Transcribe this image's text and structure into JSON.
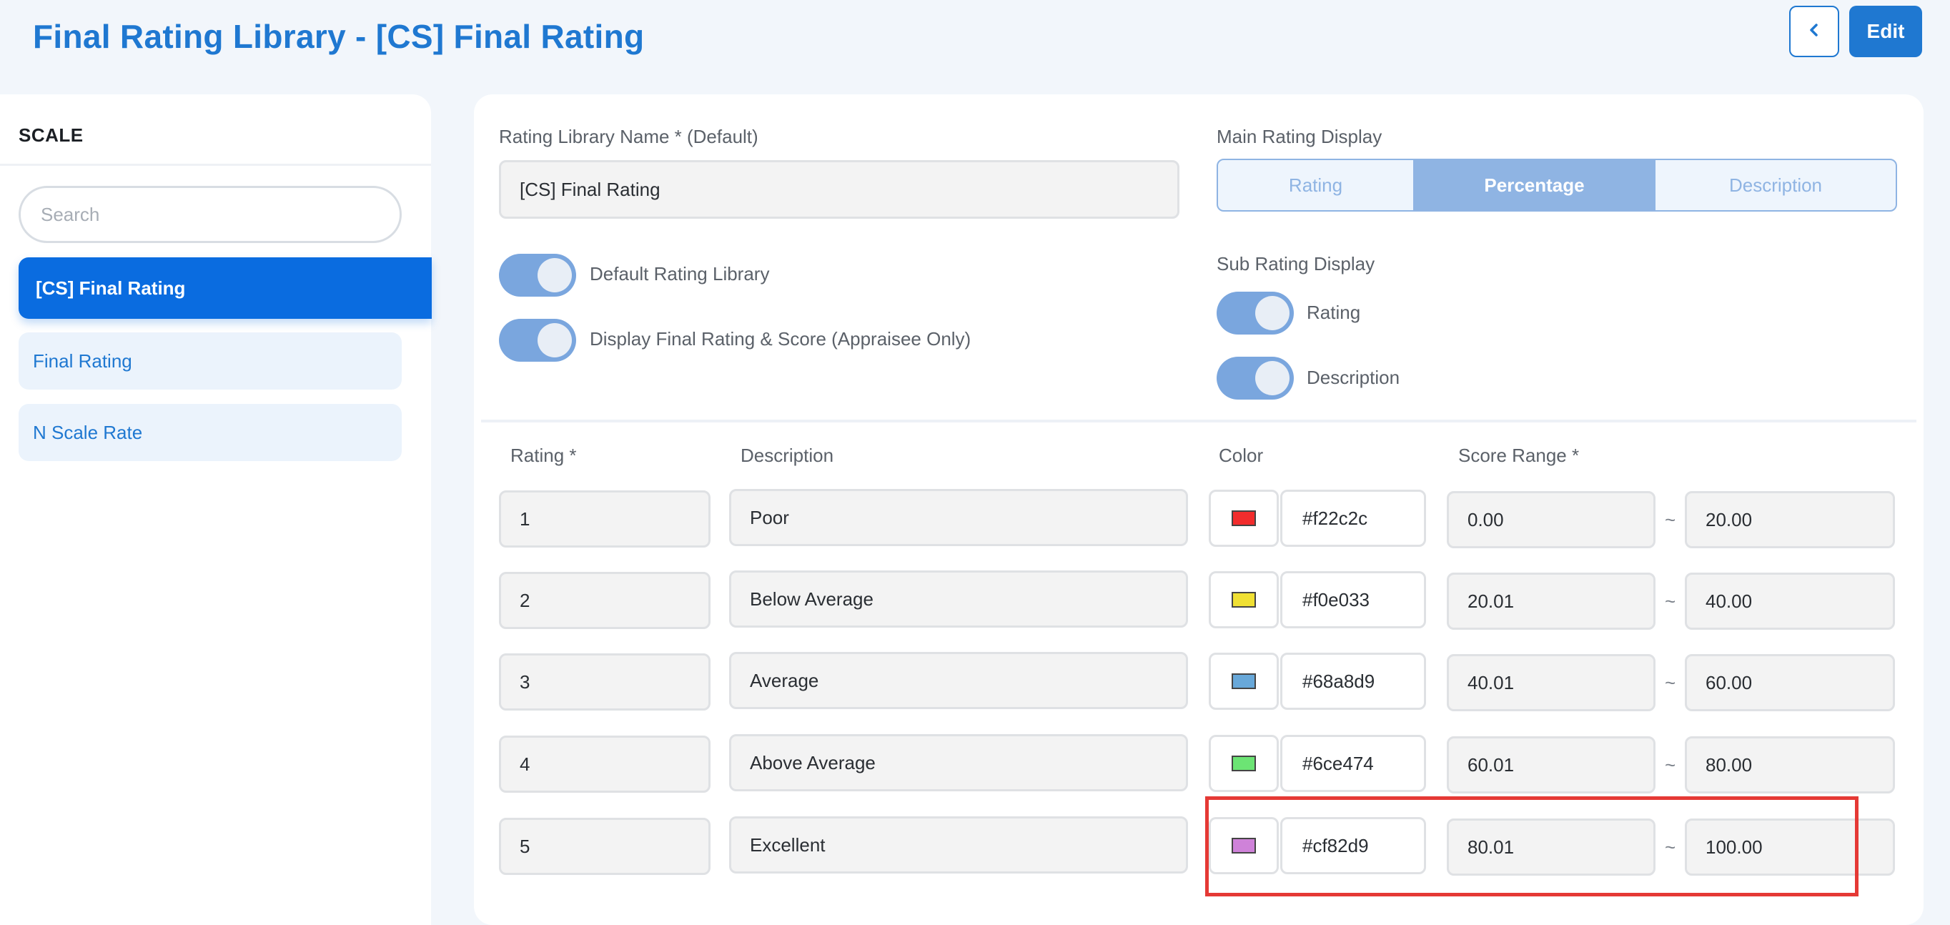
{
  "header": {
    "title": "Final Rating Library - [CS] Final Rating",
    "back_icon": "chevron-left-icon",
    "edit_label": "Edit"
  },
  "sidebar": {
    "title": "SCALE",
    "search_placeholder": "Search",
    "items": [
      {
        "label": "[CS] Final Rating",
        "active": true
      },
      {
        "label": "Final Rating",
        "active": false
      },
      {
        "label": "N Scale Rate",
        "active": false
      }
    ]
  },
  "form": {
    "name_label": "Rating Library Name * (Default)",
    "name_value": "[CS] Final Rating",
    "main_display_label": "Main Rating Display",
    "main_display_options": [
      "Rating",
      "Percentage",
      "Description"
    ],
    "main_display_selected": "Percentage",
    "default_library_label": "Default Rating Library",
    "display_final_label": "Display Final Rating & Score (Appraisee Only)",
    "sub_display_label": "Sub Rating Display",
    "sub_rating_label": "Rating",
    "sub_description_label": "Description"
  },
  "table": {
    "headers": {
      "rating": "Rating *",
      "description": "Description",
      "color": "Color",
      "score_range": "Score Range *"
    },
    "separator": "~",
    "rows": [
      {
        "rating": "1",
        "description": "Poor",
        "color": "#f22c2c",
        "min": "0.00",
        "max": "20.00"
      },
      {
        "rating": "2",
        "description": "Below Average",
        "color": "#f0e033",
        "min": "20.01",
        "max": "40.00"
      },
      {
        "rating": "3",
        "description": "Average",
        "color": "#68a8d9",
        "min": "40.01",
        "max": "60.00"
      },
      {
        "rating": "4",
        "description": "Above Average",
        "color": "#6ce474",
        "min": "60.01",
        "max": "80.00"
      },
      {
        "rating": "5",
        "description": "Excellent",
        "color": "#cf82d9",
        "min": "80.01",
        "max": "100.00"
      }
    ]
  },
  "colors": {
    "accent": "#1f78d1",
    "active_item": "#0a6ce0",
    "highlight": "#e53935"
  }
}
